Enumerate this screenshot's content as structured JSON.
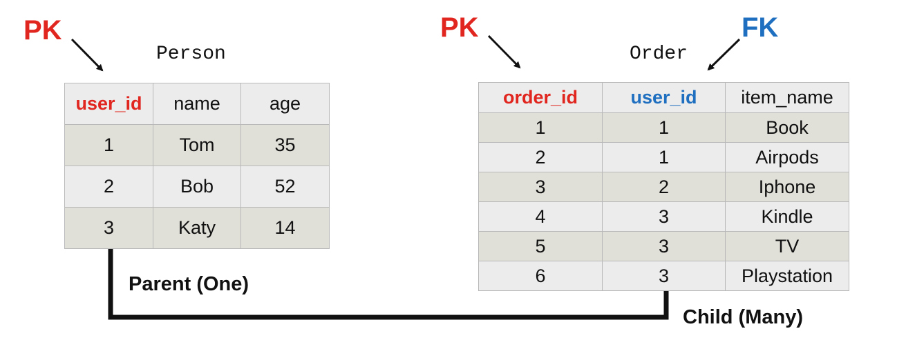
{
  "labels": {
    "person_pk": "PK",
    "order_pk": "PK",
    "order_fk": "FK",
    "parent": "Parent (One)",
    "child": "Child (Many)"
  },
  "person_table": {
    "title": "Person",
    "columns": [
      "user_id",
      "name",
      "age"
    ],
    "rows": [
      [
        "1",
        "Tom",
        "35"
      ],
      [
        "2",
        "Bob",
        "52"
      ],
      [
        "3",
        "Katy",
        "14"
      ]
    ]
  },
  "order_table": {
    "title": "Order",
    "columns": [
      "order_id",
      "user_id",
      "item_name"
    ],
    "rows": [
      [
        "1",
        "1",
        "Book"
      ],
      [
        "2",
        "1",
        "Airpods"
      ],
      [
        "3",
        "2",
        "Iphone"
      ],
      [
        "4",
        "3",
        "Kindle"
      ],
      [
        "5",
        "3",
        "TV"
      ],
      [
        "6",
        "3",
        "Playstation"
      ]
    ]
  },
  "colors": {
    "pk": "#e0261f",
    "fk": "#1f6fc0",
    "row_dark": "#e0dfd8",
    "row_light": "#ececec",
    "line": "#111111"
  }
}
